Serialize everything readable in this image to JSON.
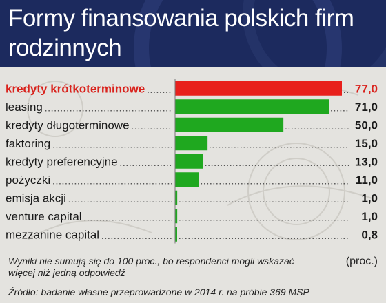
{
  "header": {
    "title": "Formy finansowania polskich firm rodzinnych"
  },
  "chart_data": {
    "type": "bar",
    "orientation": "horizontal",
    "title": "Formy finansowania polskich firm rodzinnych",
    "categories": [
      "kredyty krótkoterminowe",
      "leasing",
      "kredyty długoterminowe",
      "faktoring",
      "kredyty preferencyjne",
      "pożyczki",
      "emisja akcji",
      "venture capital",
      "mezzanine capital"
    ],
    "values": [
      77.0,
      71.0,
      50.0,
      15.0,
      13.0,
      11.0,
      1.0,
      1.0,
      0.8
    ],
    "value_labels": [
      "77,0",
      "71,0",
      "50,0",
      "15,0",
      "13,0",
      "11,0",
      "1,0",
      "1,0",
      "0,8"
    ],
    "unit": "(proc.)",
    "highlight_index": 0,
    "xlim": [
      0,
      77
    ],
    "grid": false,
    "colors": {
      "highlight": "#e8201c",
      "bar": "#1fa81f",
      "highlight_text": "#d9221c",
      "text": "#1a1a1a",
      "header": "#1c2a5e"
    }
  },
  "footer": {
    "note": "Wyniki nie sumują się do 100 proc., bo respondenci mogli wskazać więcej niż jedną odpowiedź",
    "source": "Źródło: badanie własne przeprowadzone w 2014 r. na próbie 369 MSP"
  }
}
